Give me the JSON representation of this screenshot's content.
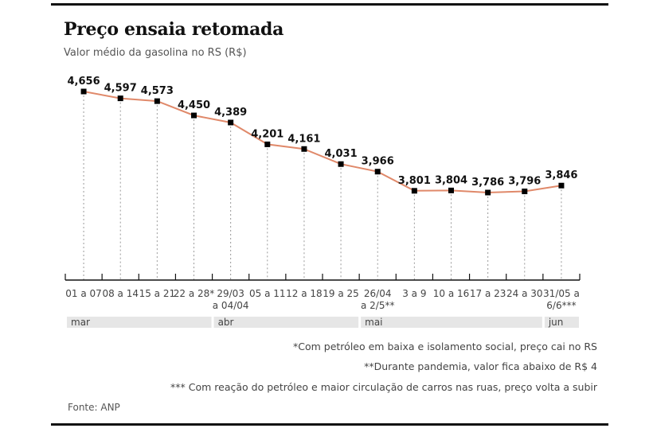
{
  "header": {
    "title": "Preço ensaia retomada",
    "subtitle": "Valor médio da gasolina no RS (R$)"
  },
  "chart_data": {
    "type": "line",
    "title": "Preço ensaia retomada",
    "subtitle": "Valor médio da gasolina no RS (R$)",
    "xlabel": "",
    "ylabel": "R$",
    "ylim": [
      3.6,
      4.75
    ],
    "grid": false,
    "line_color": "#e0896a",
    "marker_color": "#000000",
    "categories": [
      [
        "01 a 07"
      ],
      [
        "08 a 14"
      ],
      [
        "15 a 21"
      ],
      [
        "22 a 28*"
      ],
      [
        "29/03",
        "a 04/04"
      ],
      [
        "05 a 11"
      ],
      [
        "12 a 18"
      ],
      [
        "19 a 25"
      ],
      [
        "26/04",
        "a 2/5**"
      ],
      [
        "3 a 9"
      ],
      [
        "10 a 16"
      ],
      [
        "17 a 23"
      ],
      [
        "24 a 30"
      ],
      [
        "31/05 a",
        "6/6***"
      ]
    ],
    "values": [
      4.656,
      4.597,
      4.573,
      4.45,
      4.389,
      4.201,
      4.161,
      4.031,
      3.966,
      3.801,
      3.804,
      3.786,
      3.796,
      3.846
    ],
    "value_labels": [
      "4,656",
      "4,597",
      "4,573",
      "4,450",
      "4,389",
      "4,201",
      "4,161",
      "4,031",
      "3,966",
      "3,801",
      "3,804",
      "3,786",
      "3,796",
      "3,846"
    ],
    "months": [
      {
        "label": "mar",
        "start": 0,
        "end": 4
      },
      {
        "label": "abr",
        "start": 4,
        "end": 8
      },
      {
        "label": "mai",
        "start": 8,
        "end": 13
      },
      {
        "label": "jun",
        "start": 13,
        "end": 14
      }
    ]
  },
  "notes": [
    "*Com petróleo em baixa e isolamento social, preço cai no RS",
    "**Durante pandemia, valor fica abaixo de R$ 4",
    "*** Com reação do petróleo e maior circulação de carros nas ruas, preço volta a subir"
  ],
  "source": "Fonte: ANP"
}
